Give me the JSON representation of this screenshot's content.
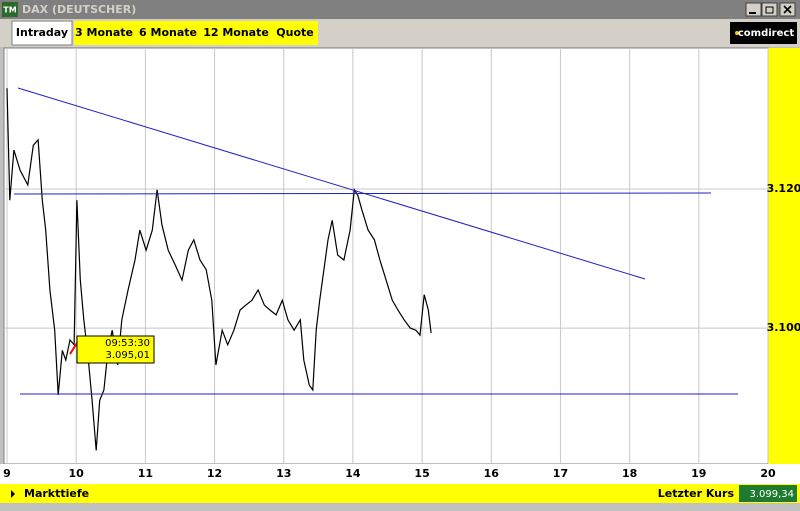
{
  "window": {
    "title": "DAX (DEUTSCHER)",
    "icon": "TM"
  },
  "tabs": [
    "Intraday",
    "3 Monate",
    "6 Monate",
    "12 Monate",
    "Quote"
  ],
  "brand": "comdirect",
  "footer": {
    "link": "Markttiefe",
    "last_price_label": "Letzter Kurs",
    "last_price": "3.099,34"
  },
  "chart_data": {
    "type": "line",
    "annotation": {
      "time": "09:53:30",
      "price": "3.095,01"
    },
    "x": [
      9.0,
      9.04,
      9.1,
      9.19,
      9.3,
      9.38,
      9.45,
      9.51,
      9.56,
      9.62,
      9.69,
      9.74,
      9.8,
      9.85,
      9.91,
      9.97,
      10.01,
      10.06,
      10.11,
      10.17,
      10.23,
      10.29,
      10.34,
      10.4,
      10.46,
      10.52,
      10.6,
      10.66,
      10.75,
      10.85,
      10.92,
      11.01,
      11.1,
      11.17,
      11.24,
      11.33,
      11.43,
      11.53,
      11.62,
      11.7,
      11.79,
      11.88,
      11.96,
      12.02,
      12.11,
      12.19,
      12.28,
      12.37,
      12.45,
      12.54,
      12.63,
      12.72,
      12.8,
      12.89,
      12.98,
      13.06,
      13.15,
      13.24,
      13.29,
      13.37,
      13.42,
      13.47,
      13.52,
      13.58,
      13.64,
      13.7,
      13.78,
      13.87,
      13.96,
      14.02,
      14.07,
      14.13,
      14.22,
      14.31,
      14.39,
      14.48,
      14.57,
      14.65,
      14.74,
      14.83,
      14.91,
      14.97,
      15.03,
      15.09,
      15.13
    ],
    "values": [
      3134.5,
      3118.4,
      3125.6,
      3122.7,
      3120.6,
      3126.3,
      3127.1,
      3118.4,
      3114.1,
      3105.5,
      3099.7,
      3090.4,
      3096.8,
      3095.4,
      3098.3,
      3097.6,
      3118.4,
      3106.9,
      3101.2,
      3096.1,
      3089.6,
      3082.4,
      3089.6,
      3091.1,
      3096.8,
      3099.7,
      3094.7,
      3101.2,
      3105.5,
      3109.8,
      3114.1,
      3111.2,
      3114.1,
      3119.9,
      3114.8,
      3111.2,
      3109.1,
      3106.9,
      3111.2,
      3112.7,
      3109.8,
      3108.4,
      3104.0,
      3094.7,
      3099.7,
      3097.6,
      3099.7,
      3102.6,
      3103.3,
      3104.0,
      3105.5,
      3103.3,
      3102.6,
      3101.9,
      3104.0,
      3101.2,
      3099.7,
      3101.2,
      3095.4,
      3091.8,
      3091.1,
      3099.7,
      3104.0,
      3108.4,
      3112.7,
      3115.5,
      3110.5,
      3109.8,
      3114.1,
      3119.9,
      3119.1,
      3117.0,
      3114.1,
      3112.7,
      3109.8,
      3106.9,
      3104.0,
      3102.6,
      3101.2,
      3100.0,
      3099.7,
      3099.0,
      3104.8,
      3102.6,
      3099.3
    ],
    "color": "#000000",
    "xlim": [
      9,
      20
    ],
    "xticks": [
      9,
      10,
      11,
      12,
      13,
      14,
      15,
      16,
      17,
      18,
      19,
      20
    ],
    "ylim": [
      3080.6,
      3140.0
    ],
    "yticks": [
      {
        "value": 3100,
        "label": "3.100"
      },
      {
        "value": 3120,
        "label": "3.120"
      }
    ],
    "grid": true
  }
}
